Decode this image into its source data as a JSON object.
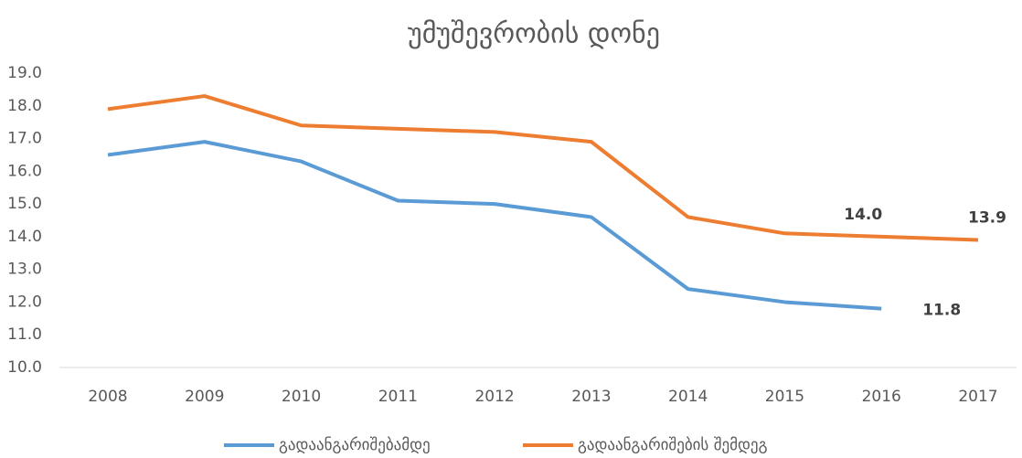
{
  "chart_data": {
    "type": "line",
    "title": "უმუშევრობის დონე",
    "categories": [
      "2008",
      "2009",
      "2010",
      "2011",
      "2012",
      "2013",
      "2014",
      "2015",
      "2016",
      "2017"
    ],
    "series": [
      {
        "name": "გადაანგარიშებამდე",
        "color": "#5b9bd5",
        "values": [
          16.5,
          16.9,
          16.3,
          15.1,
          15.0,
          14.6,
          12.4,
          12.0,
          11.8,
          null
        ],
        "value_labels": [
          null,
          null,
          null,
          null,
          null,
          null,
          null,
          null,
          "11.8",
          null
        ]
      },
      {
        "name": "გადაანგარიშების შემდეგ",
        "color": "#ed7d31",
        "values": [
          17.9,
          18.3,
          17.4,
          17.3,
          17.2,
          16.9,
          14.6,
          14.1,
          14.0,
          13.9
        ],
        "value_labels": [
          null,
          null,
          null,
          null,
          null,
          null,
          null,
          null,
          "14.0",
          "13.9"
        ]
      }
    ],
    "ylim": [
      10,
      19
    ],
    "yticks": [
      {
        "value": 10,
        "label": "10.0"
      },
      {
        "value": 11,
        "label": "11.0"
      },
      {
        "value": 12,
        "label": "12.0"
      },
      {
        "value": 13,
        "label": "13.0"
      },
      {
        "value": 14,
        "label": "14.0"
      },
      {
        "value": 15,
        "label": "15.0"
      },
      {
        "value": 16,
        "label": "16.0"
      },
      {
        "value": 17,
        "label": "17.0"
      },
      {
        "value": 18,
        "label": "18.0"
      },
      {
        "value": 19,
        "label": "19.0"
      }
    ],
    "legend": "bottom"
  }
}
